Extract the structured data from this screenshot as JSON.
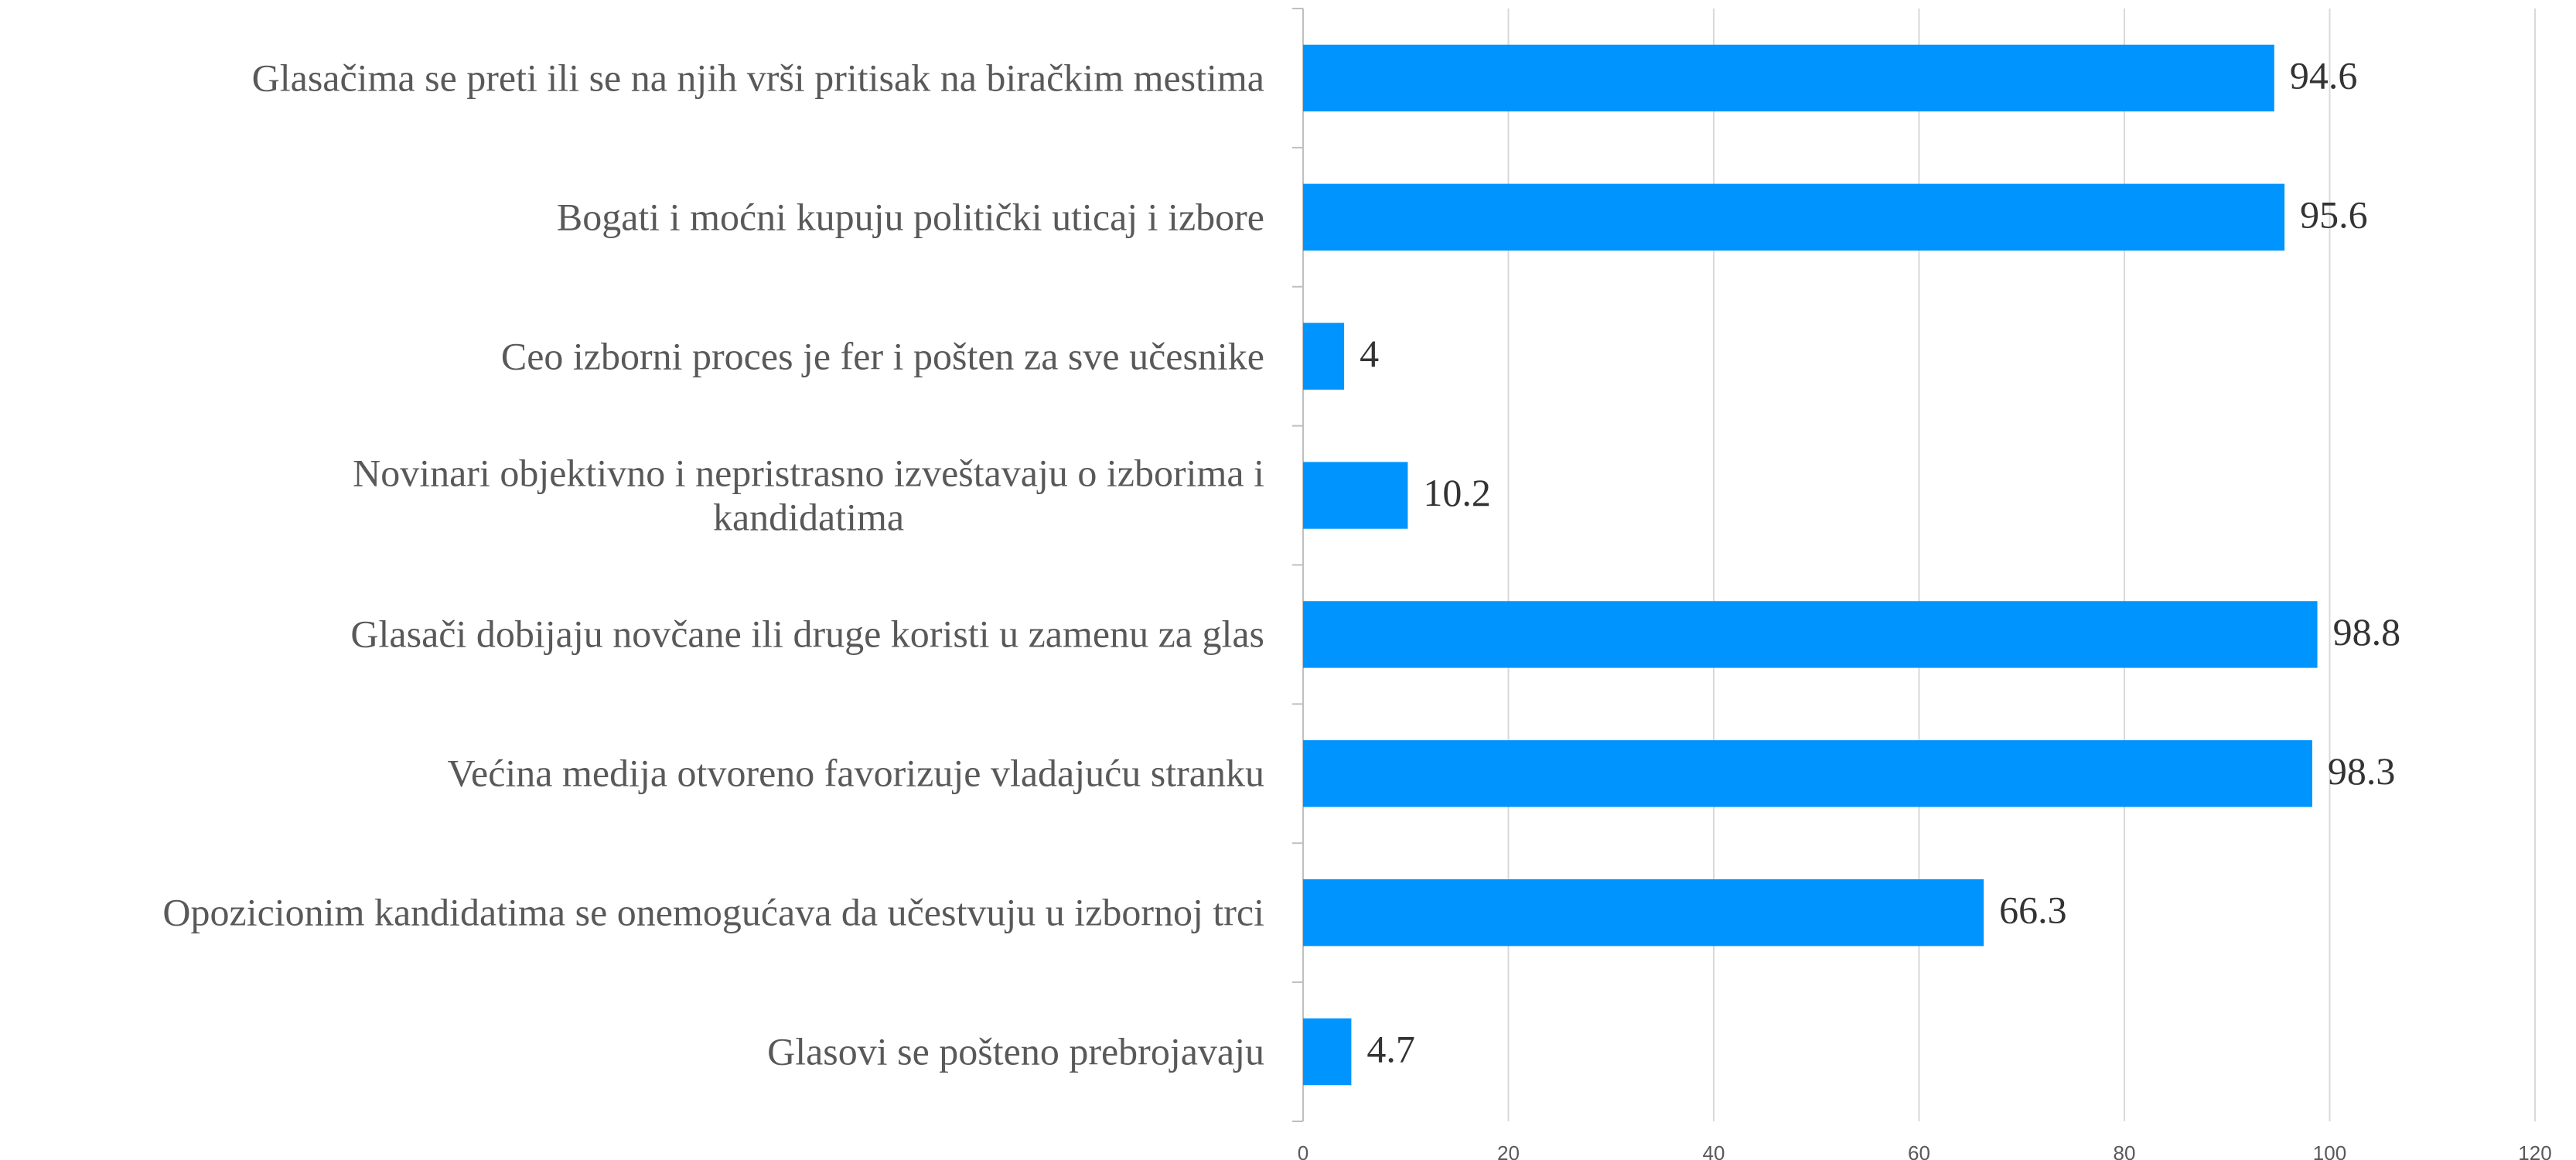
{
  "chart_data": {
    "type": "hbar",
    "categories": [
      "Glasačima se preti ili se na njih vrši pritisak na biračkim mestima",
      "Bogati i moćni kupuju politički uticaj i izbore",
      "Ceo izborni proces je fer i pošten za sve učesnike",
      "Novinari objektivno i nepristrasno izveštavaju o izborima i\nkandidatima",
      "Glasači dobijaju novčane ili druge koristi u zamenu za glas",
      "Većina medija otvoreno favorizuje vladajuću stranku",
      "Opozicionim kandidatima se onemogućava da učestvuju u izbornoj trci",
      "Glasovi se pošteno prebrojavaju"
    ],
    "values": [
      94.6,
      95.6,
      4,
      10.2,
      98.8,
      98.3,
      66.3,
      4.7
    ],
    "color": "#0094ff",
    "xlim": [
      0,
      120
    ],
    "xticks": [
      0,
      20,
      40,
      60,
      80,
      100,
      120
    ],
    "grid": true
  }
}
